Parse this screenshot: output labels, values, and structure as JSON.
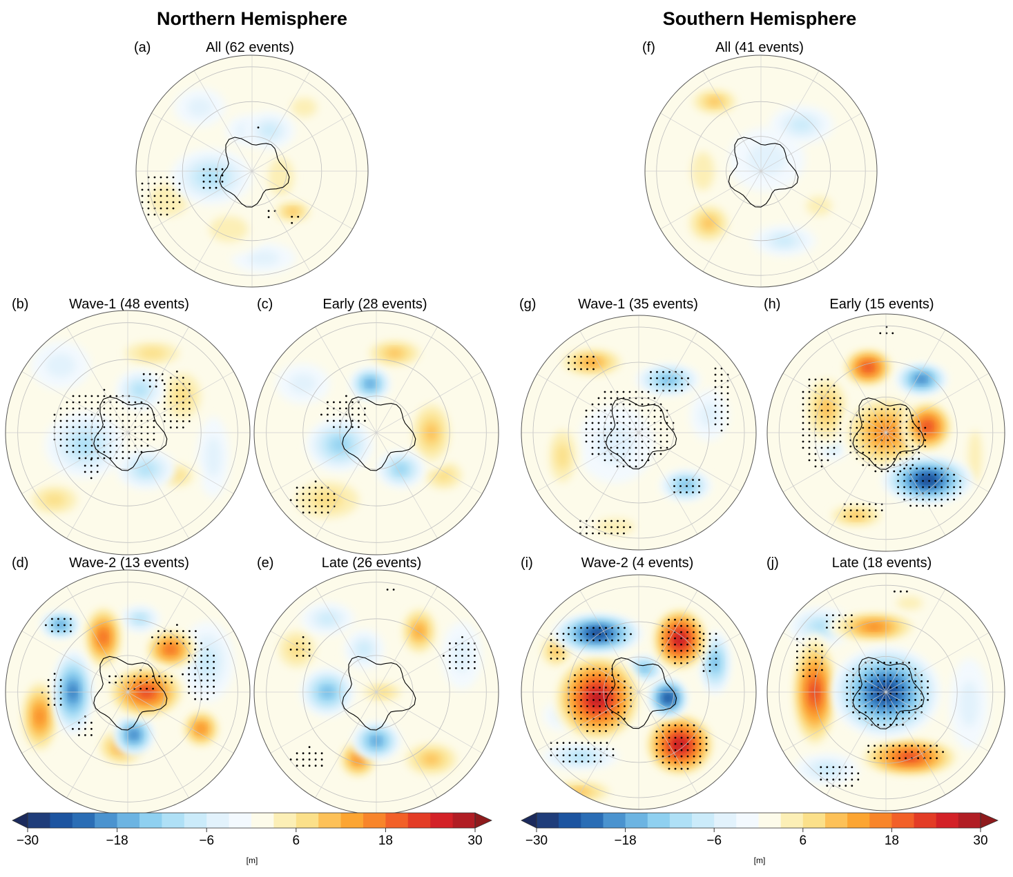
{
  "figure": {
    "nh_title": "Northern Hemisphere",
    "sh_title": "Southern Hemisphere"
  },
  "chart_data": {
    "type": "heatmap",
    "description": "Polar stereographic composite anomaly maps (geopotential height) with stippling for significance",
    "panels": [
      {
        "id": "a",
        "label": "(a)",
        "title": "All (62 events)",
        "hemisphere": "north",
        "events": 62
      },
      {
        "id": "b",
        "label": "(b)",
        "title": "Wave-1 (48 events)",
        "hemisphere": "north",
        "events": 48
      },
      {
        "id": "c",
        "label": "(c)",
        "title": "Early (28 events)",
        "hemisphere": "north",
        "events": 28
      },
      {
        "id": "d",
        "label": "(d)",
        "title": "Wave-2 (13 events)",
        "hemisphere": "north",
        "events": 13
      },
      {
        "id": "e",
        "label": "(e)",
        "title": "Late (26 events)",
        "hemisphere": "north",
        "events": 26
      },
      {
        "id": "f",
        "label": "(f)",
        "title": "All (41 events)",
        "hemisphere": "south",
        "events": 41
      },
      {
        "id": "g",
        "label": "(g)",
        "title": "Wave-1 (35 events)",
        "hemisphere": "south",
        "events": 35
      },
      {
        "id": "h",
        "label": "(h)",
        "title": "Early (15 events)",
        "hemisphere": "south",
        "events": 15
      },
      {
        "id": "i",
        "label": "(i)",
        "title": "Wave-2 (4 events)",
        "hemisphere": "south",
        "events": 4
      },
      {
        "id": "j",
        "label": "(j)",
        "title": "Late (18 events)",
        "hemisphere": "south",
        "events": 18
      }
    ],
    "colorbar": {
      "unit": "[m]",
      "range": [
        -30,
        30
      ],
      "interval": 3,
      "extend": "both",
      "tick_values": [
        -30,
        -18,
        -6,
        6,
        18,
        30
      ],
      "tick_labels": [
        "−30",
        "−18",
        "−6",
        "6",
        "18",
        "30"
      ],
      "colors": [
        "#1f3d7a",
        "#1c54a0",
        "#2a6db5",
        "#4a93cf",
        "#6cb4e2",
        "#8fd0f0",
        "#afe0f6",
        "#cbebfa",
        "#e2f2fc",
        "#f3f9fe",
        "#fdfbea",
        "#fcefb6",
        "#fbe08a",
        "#fdc158",
        "#fca532",
        "#f8852a",
        "#f26028",
        "#e33c26",
        "#d32127",
        "#b11d24"
      ],
      "under_color": "#1b2a5c",
      "over_color": "#8e1a1c"
    },
    "anomalies": {
      "a": [
        [
          -0.35,
          0.05,
          0.32,
          0.22,
          -12
        ],
        [
          0.15,
          -0.35,
          0.2,
          0.15,
          -9
        ],
        [
          0.35,
          0.35,
          0.18,
          0.1,
          10
        ],
        [
          -0.72,
          0.25,
          0.3,
          0.25,
          6
        ],
        [
          -0.05,
          -0.35,
          0.16,
          0.12,
          -6
        ],
        [
          0.25,
          0.05,
          0.2,
          0.3,
          5
        ],
        [
          -0.45,
          -0.55,
          0.2,
          0.15,
          -4
        ],
        [
          0.1,
          0.75,
          0.25,
          0.12,
          -4
        ],
        [
          0.45,
          -0.55,
          0.2,
          0.15,
          6
        ],
        [
          -0.2,
          0.5,
          0.3,
          0.2,
          5
        ]
      ],
      "b": [
        [
          -0.35,
          0.1,
          0.3,
          0.25,
          -10
        ],
        [
          0.1,
          -0.35,
          0.18,
          0.15,
          -12
        ],
        [
          0.15,
          0.3,
          0.22,
          0.15,
          -10
        ],
        [
          0.4,
          0.35,
          0.18,
          0.12,
          9
        ],
        [
          0.45,
          -0.3,
          0.2,
          0.25,
          7
        ],
        [
          -0.6,
          0.55,
          0.25,
          0.15,
          7
        ],
        [
          0.2,
          -0.65,
          0.3,
          0.12,
          7
        ],
        [
          -0.55,
          -0.55,
          0.22,
          0.18,
          -5
        ],
        [
          0.7,
          0.2,
          0.12,
          0.3,
          -4
        ]
      ],
      "c": [
        [
          -0.3,
          0.1,
          0.25,
          0.2,
          -14
        ],
        [
          -0.05,
          -0.4,
          0.15,
          0.12,
          -20
        ],
        [
          0.2,
          0.3,
          0.18,
          0.14,
          -14
        ],
        [
          0.45,
          0.0,
          0.18,
          0.28,
          11
        ],
        [
          0.15,
          -0.65,
          0.25,
          0.12,
          12
        ],
        [
          -0.4,
          0.55,
          0.35,
          0.2,
          9
        ],
        [
          0.55,
          0.35,
          0.2,
          0.15,
          9
        ],
        [
          -0.6,
          -0.4,
          0.2,
          0.15,
          -5
        ]
      ],
      "d": [
        [
          -0.45,
          0.0,
          0.15,
          0.32,
          -24
        ],
        [
          -0.55,
          -0.55,
          0.15,
          0.1,
          -20
        ],
        [
          0.05,
          0.35,
          0.15,
          0.15,
          -22
        ],
        [
          -0.2,
          -0.45,
          0.15,
          0.25,
          20
        ],
        [
          0.15,
          0.0,
          0.3,
          0.2,
          24
        ],
        [
          0.35,
          -0.35,
          0.2,
          0.15,
          20
        ],
        [
          0.6,
          0.3,
          0.15,
          0.15,
          16
        ],
        [
          -0.72,
          0.2,
          0.15,
          0.3,
          16
        ],
        [
          -0.05,
          0.45,
          0.2,
          0.15,
          14
        ],
        [
          0.65,
          -0.25,
          0.2,
          0.3,
          -7
        ],
        [
          0.1,
          -0.6,
          0.15,
          0.1,
          -10
        ]
      ],
      "e": [
        [
          -0.4,
          0.0,
          0.2,
          0.18,
          -18
        ],
        [
          0.0,
          0.4,
          0.18,
          0.14,
          -20
        ],
        [
          -0.1,
          -0.35,
          0.15,
          0.15,
          -8
        ],
        [
          0.35,
          -0.5,
          0.15,
          0.2,
          14
        ],
        [
          -0.15,
          0.55,
          0.15,
          0.15,
          16
        ],
        [
          0.45,
          0.55,
          0.25,
          0.15,
          10
        ],
        [
          0.05,
          0.0,
          0.2,
          0.1,
          7
        ],
        [
          -0.65,
          -0.35,
          0.2,
          0.2,
          7
        ],
        [
          -0.4,
          -0.6,
          0.2,
          0.12,
          -8
        ],
        [
          0.7,
          -0.3,
          0.15,
          0.25,
          -5
        ]
      ],
      "f": [
        [
          -0.4,
          -0.6,
          0.22,
          0.12,
          11
        ],
        [
          -0.45,
          0.45,
          0.2,
          0.18,
          12
        ],
        [
          0.2,
          0.6,
          0.25,
          0.12,
          -7
        ],
        [
          0.35,
          -0.4,
          0.25,
          0.15,
          -8
        ],
        [
          0.05,
          -0.1,
          0.3,
          0.25,
          -4
        ],
        [
          0.5,
          0.3,
          0.2,
          0.15,
          5
        ],
        [
          -0.5,
          0.0,
          0.18,
          0.3,
          5
        ]
      ],
      "g": [
        [
          -0.4,
          -0.6,
          0.28,
          0.12,
          15
        ],
        [
          0.25,
          -0.45,
          0.25,
          0.12,
          -16
        ],
        [
          0.4,
          0.45,
          0.2,
          0.12,
          -16
        ],
        [
          -0.2,
          0.1,
          0.3,
          0.3,
          -6
        ],
        [
          -0.65,
          0.2,
          0.15,
          0.3,
          8
        ],
        [
          0.6,
          -0.15,
          0.15,
          0.2,
          -6
        ],
        [
          -0.2,
          0.8,
          0.3,
          0.12,
          5
        ]
      ],
      "h": [
        [
          0.0,
          0.0,
          0.35,
          0.3,
          16
        ],
        [
          0.35,
          -0.05,
          0.2,
          0.2,
          22
        ],
        [
          -0.15,
          -0.55,
          0.2,
          0.15,
          22
        ],
        [
          0.35,
          0.4,
          0.35,
          0.18,
          -30
        ],
        [
          0.3,
          -0.45,
          0.2,
          0.12,
          -22
        ],
        [
          -0.5,
          -0.2,
          0.2,
          0.3,
          10
        ],
        [
          -0.45,
          0.1,
          0.12,
          0.12,
          -8
        ],
        [
          -0.25,
          0.7,
          0.25,
          0.1,
          12
        ],
        [
          0.75,
          0.2,
          0.1,
          0.4,
          5
        ]
      ],
      "i": [
        [
          -0.35,
          0.05,
          0.35,
          0.35,
          30
        ],
        [
          0.35,
          -0.45,
          0.22,
          0.25,
          30
        ],
        [
          0.35,
          0.45,
          0.28,
          0.25,
          30
        ],
        [
          -0.35,
          -0.5,
          0.35,
          0.15,
          -30
        ],
        [
          0.25,
          0.05,
          0.15,
          0.15,
          -30
        ],
        [
          0.05,
          -0.2,
          0.15,
          0.1,
          -16
        ],
        [
          0.65,
          -0.25,
          0.12,
          0.25,
          -16
        ],
        [
          -0.5,
          0.55,
          0.3,
          0.1,
          -12
        ],
        [
          -0.7,
          -0.35,
          0.15,
          0.15,
          12
        ],
        [
          -0.5,
          0.85,
          0.3,
          0.1,
          10
        ],
        [
          -0.65,
          0.2,
          0.15,
          0.12,
          -4
        ]
      ],
      "j": [
        [
          0.0,
          0.0,
          0.42,
          0.35,
          -30
        ],
        [
          0.05,
          0.02,
          0.18,
          0.15,
          -20
        ],
        [
          -0.6,
          0.0,
          0.18,
          0.45,
          24
        ],
        [
          0.2,
          0.55,
          0.4,
          0.15,
          22
        ],
        [
          -0.1,
          -0.55,
          0.35,
          0.12,
          18
        ],
        [
          -0.55,
          -0.55,
          0.25,
          0.15,
          -12
        ],
        [
          -0.5,
          0.65,
          0.25,
          0.12,
          -8
        ],
        [
          0.2,
          -0.75,
          0.2,
          0.1,
          6
        ],
        [
          0.7,
          0.1,
          0.15,
          0.35,
          -5
        ]
      ]
    },
    "stipples": {
      "a": [
        [
          -0.8,
          0.2,
          0.2,
          0.2
        ],
        [
          -0.35,
          0.05,
          0.12,
          0.12
        ],
        [
          0.05,
          -0.38,
          0.05,
          0.05
        ],
        [
          0.35,
          0.4,
          0.06,
          0.06
        ],
        [
          0.15,
          0.35,
          0.06,
          0.06
        ]
      ],
      "b": [
        [
          -0.2,
          -0.05,
          0.45,
          0.3
        ],
        [
          0.4,
          -0.25,
          0.15,
          0.25
        ],
        [
          0.2,
          -0.45,
          0.12,
          0.08
        ],
        [
          -0.3,
          0.3,
          0.1,
          0.08
        ]
      ],
      "c": [
        [
          -0.5,
          0.55,
          0.2,
          0.15
        ],
        [
          -0.25,
          -0.15,
          0.2,
          0.15
        ]
      ],
      "d": [
        [
          -0.55,
          -0.55,
          0.12,
          0.1
        ],
        [
          -0.6,
          0.0,
          0.1,
          0.15
        ],
        [
          0.6,
          -0.15,
          0.15,
          0.25
        ],
        [
          0.1,
          -0.1,
          0.3,
          0.08
        ],
        [
          -0.35,
          0.3,
          0.1,
          0.1
        ],
        [
          0.4,
          -0.45,
          0.2,
          0.1
        ]
      ],
      "e": [
        [
          -0.6,
          -0.35,
          0.1,
          0.1
        ],
        [
          -0.55,
          0.55,
          0.15,
          0.1
        ],
        [
          0.7,
          -0.3,
          0.15,
          0.15
        ],
        [
          0.1,
          -0.85,
          0.06,
          0.04
        ]
      ],
      "f": [],
      "g": [
        [
          -0.1,
          -0.05,
          0.4,
          0.35
        ],
        [
          0.25,
          -0.45,
          0.2,
          0.12
        ],
        [
          0.4,
          0.45,
          0.15,
          0.1
        ],
        [
          -0.5,
          -0.6,
          0.15,
          0.1
        ],
        [
          -0.3,
          0.8,
          0.25,
          0.1
        ],
        [
          0.7,
          -0.3,
          0.1,
          0.3
        ]
      ],
      "h": [
        [
          0.0,
          0.05,
          0.35,
          0.3
        ],
        [
          0.35,
          0.45,
          0.3,
          0.2
        ],
        [
          -0.55,
          -0.1,
          0.2,
          0.4
        ],
        [
          -0.2,
          0.65,
          0.2,
          0.1
        ],
        [
          0.0,
          -0.85,
          0.1,
          0.04
        ]
      ],
      "i": [
        [
          -0.35,
          0.05,
          0.3,
          0.3
        ],
        [
          0.35,
          -0.45,
          0.2,
          0.22
        ],
        [
          0.35,
          0.45,
          0.25,
          0.22
        ],
        [
          -0.35,
          -0.5,
          0.3,
          0.1
        ],
        [
          -0.5,
          0.5,
          0.3,
          0.12
        ],
        [
          0.6,
          -0.35,
          0.1,
          0.2
        ],
        [
          -0.7,
          -0.4,
          0.1,
          0.15
        ]
      ],
      "j": [
        [
          0.0,
          0.0,
          0.38,
          0.3
        ],
        [
          0.15,
          0.5,
          0.35,
          0.1
        ],
        [
          -0.65,
          -0.3,
          0.15,
          0.2
        ],
        [
          -0.4,
          -0.6,
          0.15,
          0.1
        ],
        [
          -0.4,
          0.7,
          0.2,
          0.12
        ],
        [
          0.1,
          -0.85,
          0.08,
          0.05
        ]
      ]
    }
  }
}
